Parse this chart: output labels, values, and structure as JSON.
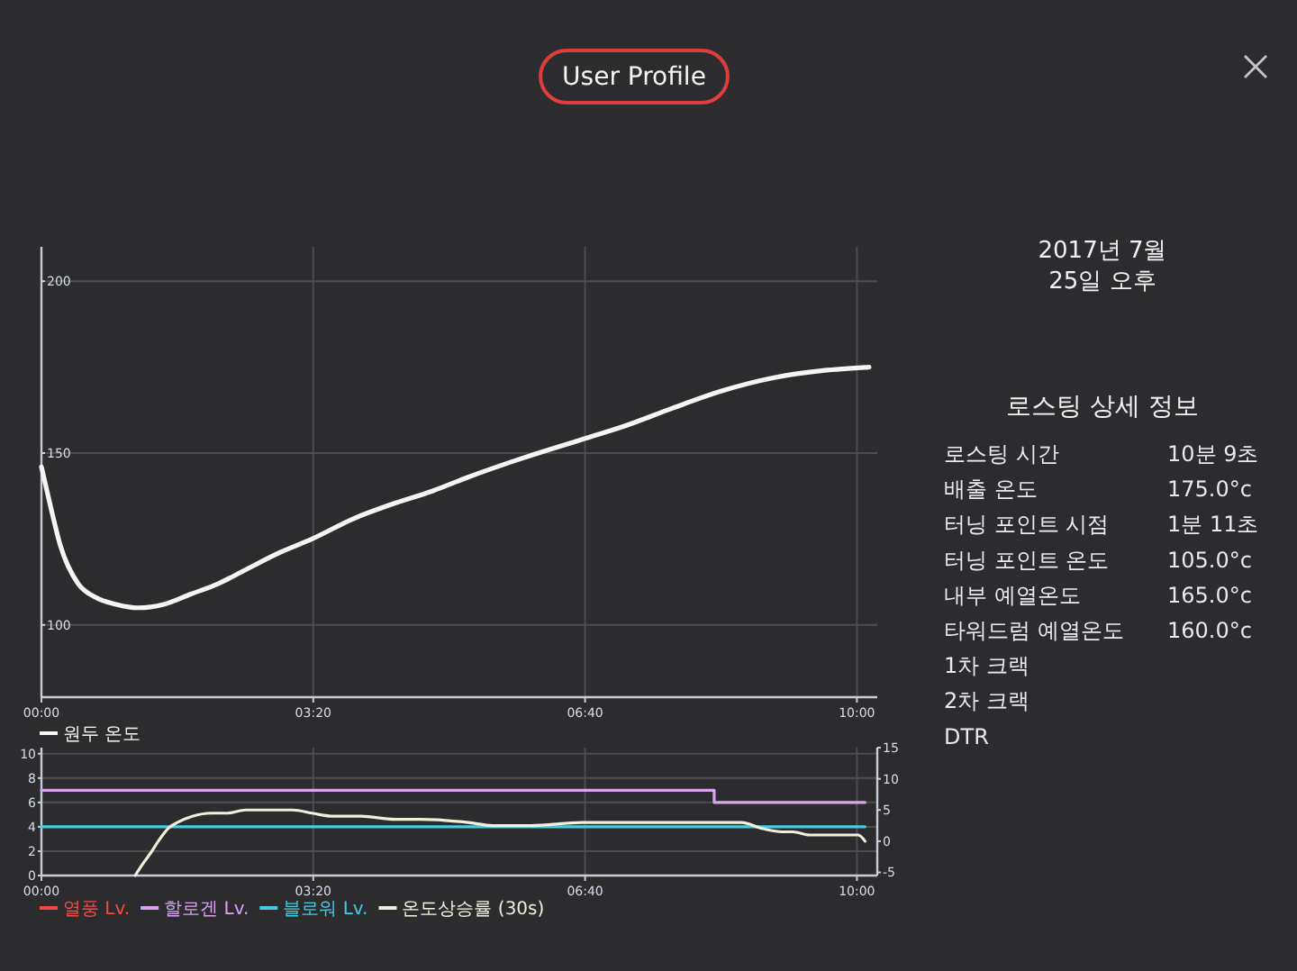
{
  "chart_data": [
    {
      "type": "line",
      "title": "User Profile",
      "x": [
        0,
        7,
        14,
        27,
        40,
        55,
        71,
        90,
        110,
        130,
        150,
        175,
        199,
        230,
        257,
        288,
        314,
        350,
        398,
        430,
        464,
        500,
        540,
        575,
        609
      ],
      "xlim": [
        0,
        615
      ],
      "xticks": [
        {
          "value": 0,
          "label": "00:00"
        },
        {
          "value": 200,
          "label": "03:20"
        },
        {
          "value": 400,
          "label": "06:40"
        },
        {
          "value": 600,
          "label": "10:00"
        }
      ],
      "ylim": [
        79,
        210
      ],
      "yticks": [
        100,
        150,
        200
      ],
      "grid": true,
      "legend": "bottom left",
      "series": [
        {
          "name": "원두 온도",
          "color": "#f5f5f5",
          "values": [
            146,
            134,
            123,
            112,
            108,
            106,
            105,
            106,
            109,
            112,
            116,
            121,
            125,
            131,
            135,
            139,
            143,
            148,
            154,
            158,
            163,
            168,
            172,
            174,
            175
          ]
        }
      ]
    },
    {
      "type": "line",
      "xlim": [
        0,
        615
      ],
      "xticks": [
        {
          "value": 0,
          "label": "00:00"
        },
        {
          "value": 200,
          "label": "03:20"
        },
        {
          "value": 400,
          "label": "06:40"
        },
        {
          "value": 600,
          "label": "10:00"
        }
      ],
      "ylim": [
        0,
        10.5
      ],
      "yticks": [
        0,
        2,
        4,
        6,
        8,
        10
      ],
      "y2lim": [
        -5.5,
        15
      ],
      "y2ticks": [
        -5,
        0,
        5,
        10,
        15
      ],
      "grid": true,
      "legend": "bottom left",
      "series": [
        {
          "name": "열풍 Lv.",
          "color": "#f04a4a"
        },
        {
          "name": "할로겐 Lv.",
          "type": "step",
          "color": "#d9a2f2",
          "x": [
            0,
            495,
            606
          ],
          "values": [
            7,
            6,
            6
          ]
        },
        {
          "name": "블로워 Lv.",
          "color": "#45cce0",
          "x": [
            0,
            606
          ],
          "values": [
            4,
            4
          ]
        },
        {
          "name": "온도상승률 (30s)",
          "color": "#f2f0dc",
          "axis": "y2",
          "x": [
            69,
            75,
            80,
            86,
            93,
            100,
            111,
            125,
            137,
            150,
            168,
            185,
            199,
            215,
            235,
            260,
            279,
            314,
            332,
            360,
            398,
            430,
            464,
            500,
            515,
            531,
            545,
            553,
            565,
            575,
            590,
            601,
            606
          ],
          "values": [
            -5.5,
            -3.5,
            -2,
            0,
            2,
            3,
            4,
            4.5,
            4.5,
            5,
            5,
            5,
            4.5,
            4,
            4,
            3.5,
            3.5,
            3,
            2.5,
            2.5,
            3,
            3,
            3,
            3,
            3,
            2,
            1.5,
            1.5,
            1,
            1,
            1,
            1,
            0
          ]
        }
      ]
    },
    {
      "type": "other",
      "subtitle": "2017년 7월 25일 오후",
      "title": "로스팅 상세 정보",
      "categories": [
        "로스팅 시간",
        "배출 온도",
        "터닝 포인트 시점",
        "터닝 포인트 온도",
        "내부 예열온도",
        "타워드럼 예열온도",
        "1차 크랙",
        "2차 크랙",
        "DTR"
      ],
      "value_labels": [
        "10분 9초",
        "175.0°c",
        "1분 11초",
        "105.0°c",
        "165.0°c",
        "160.0°c",
        null,
        null,
        null
      ]
    }
  ]
}
